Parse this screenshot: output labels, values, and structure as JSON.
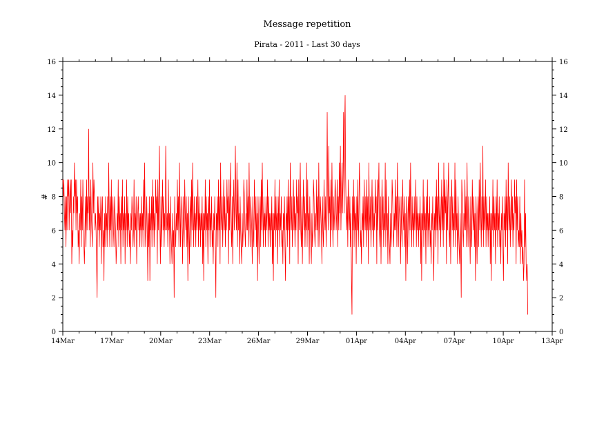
{
  "chart_data": {
    "type": "line",
    "title": "Message repetition",
    "subtitle": "Pirata - 2011 - Last 30 days",
    "xlabel": "",
    "ylabel": "#",
    "ylim": [
      0,
      16
    ],
    "xlim_days": [
      0,
      30
    ],
    "y_ticks": [
      0,
      2,
      4,
      6,
      8,
      10,
      12,
      14,
      16
    ],
    "x_ticks": [
      {
        "day": 0,
        "label": "14Mar"
      },
      {
        "day": 3,
        "label": "17Mar"
      },
      {
        "day": 6,
        "label": "20Mar"
      },
      {
        "day": 9,
        "label": "23Mar"
      },
      {
        "day": 12,
        "label": "26Mar"
      },
      {
        "day": 15,
        "label": "29Mar"
      },
      {
        "day": 18,
        "label": "01Apr"
      },
      {
        "day": 21,
        "label": "04Apr"
      },
      {
        "day": 24,
        "label": "07Apr"
      },
      {
        "day": 27,
        "label": "10Apr"
      },
      {
        "day": 30,
        "label": "13Apr"
      }
    ],
    "grid": false,
    "series": [
      {
        "color": "#ff0000",
        "x_start": "14Mar",
        "x_end": "11Apr",
        "values": [
          9,
          8,
          9,
          7,
          6,
          8,
          5,
          8,
          6,
          9,
          8,
          9,
          6,
          8,
          9,
          7,
          9,
          4,
          6,
          5,
          8,
          7,
          10,
          8,
          9,
          6,
          9,
          7,
          8,
          5,
          6,
          4,
          7,
          6,
          9,
          5,
          8,
          6,
          9,
          7,
          5,
          4,
          6,
          8,
          5,
          9,
          6,
          8,
          7,
          12,
          6,
          8,
          5,
          9,
          7,
          6,
          5,
          10,
          7,
          9,
          8,
          6,
          7,
          6,
          4,
          2,
          8,
          6,
          8,
          5,
          7,
          6,
          8,
          4,
          7,
          8,
          5,
          6,
          3,
          7,
          5,
          8,
          6,
          7,
          5,
          8,
          6,
          10,
          7,
          5,
          8,
          6,
          9,
          5,
          7,
          8,
          6,
          5,
          8,
          7,
          6,
          4,
          5,
          7,
          6,
          9,
          5,
          8,
          6,
          7,
          4,
          8,
          6,
          9,
          5,
          7,
          6,
          8,
          4,
          7,
          6,
          9,
          5,
          8,
          6,
          7,
          5,
          6,
          4,
          7,
          6,
          8,
          7,
          5,
          6,
          9,
          5,
          7,
          6,
          8,
          4,
          6,
          7,
          8,
          6,
          7,
          5,
          7,
          6,
          8,
          5,
          7,
          6,
          9,
          5,
          10,
          7,
          5,
          6,
          8,
          6,
          3,
          7,
          5,
          8,
          3,
          7,
          6,
          8,
          5,
          9,
          6,
          8,
          5,
          7,
          6,
          9,
          7,
          8,
          4,
          9,
          6,
          8,
          11,
          6,
          4,
          8,
          5,
          7,
          9,
          6,
          8,
          5,
          7,
          6,
          11,
          8,
          6,
          7,
          5,
          9,
          6,
          7,
          4,
          8,
          6,
          5,
          4,
          7,
          5,
          6,
          2,
          8,
          6,
          5,
          7,
          6,
          9,
          6,
          8,
          5,
          10,
          7,
          5,
          8,
          7,
          6,
          4,
          8,
          6,
          5,
          9,
          7,
          6,
          8,
          5,
          7,
          3,
          8,
          6,
          4,
          7,
          8,
          5,
          9,
          6,
          10,
          7,
          5,
          8,
          6,
          7,
          5,
          8,
          6,
          7,
          9,
          5,
          8,
          6,
          7,
          5,
          7,
          6,
          8,
          4,
          7,
          3,
          7,
          6,
          9,
          5,
          8,
          6,
          7,
          4,
          8,
          6,
          9,
          5,
          7,
          6,
          8,
          5,
          6,
          4,
          7,
          6,
          8,
          5,
          2,
          7,
          6,
          8,
          5,
          9,
          6,
          8,
          4,
          10,
          7,
          6,
          8,
          5,
          7,
          9,
          6,
          8,
          5,
          7,
          6,
          9,
          7,
          8,
          4,
          9,
          6,
          8,
          10,
          6,
          5,
          8,
          4,
          7,
          9,
          6,
          8,
          11,
          7,
          6,
          10,
          5,
          9,
          6,
          7,
          4,
          8,
          6,
          5,
          4,
          7,
          5,
          6,
          9,
          8,
          6,
          5,
          7,
          6,
          9,
          6,
          8,
          5,
          10,
          7,
          5,
          8,
          7,
          6,
          4,
          8,
          6,
          5,
          9,
          7,
          6,
          8,
          5,
          7,
          3,
          8,
          6,
          4,
          7,
          8,
          5,
          9,
          6,
          10,
          7,
          5,
          8,
          6,
          7,
          5,
          8,
          6,
          7,
          9,
          5,
          8,
          6,
          7,
          5,
          7,
          6,
          8,
          4,
          7,
          3,
          7,
          6,
          9,
          5,
          8,
          6,
          7,
          4,
          8,
          6,
          9,
          5,
          7,
          6,
          8,
          5,
          6,
          4,
          7,
          6,
          8,
          5,
          3,
          7,
          6,
          8,
          5,
          9,
          6,
          8,
          4,
          10,
          7,
          6,
          8,
          5,
          7,
          9,
          6,
          8,
          5,
          7,
          6,
          9,
          7,
          8,
          4,
          9,
          6,
          8,
          10,
          6,
          5,
          8,
          4,
          7,
          9,
          6,
          8,
          5,
          7,
          6,
          10,
          5,
          9,
          6,
          7,
          4,
          8,
          6,
          5,
          4,
          7,
          5,
          6,
          9,
          8,
          6,
          5,
          7,
          6,
          9,
          6,
          8,
          5,
          10,
          7,
          5,
          8,
          7,
          6,
          4,
          8,
          6,
          5,
          9,
          7,
          6,
          8,
          5,
          7,
          13,
          8,
          6,
          11,
          7,
          8,
          5,
          9,
          6,
          10,
          7,
          5,
          8,
          6,
          7,
          9,
          8,
          6,
          7,
          9,
          5,
          8,
          6,
          10,
          7,
          11,
          6,
          8,
          10,
          7,
          9,
          13,
          7,
          12,
          14,
          9,
          7,
          6,
          8,
          5,
          9,
          7,
          6,
          8,
          5,
          7,
          3,
          1,
          8,
          6,
          9,
          5,
          8,
          6,
          7,
          4,
          8,
          6,
          9,
          5,
          7,
          10,
          8,
          5,
          6,
          4,
          7,
          6,
          8,
          5,
          9,
          7,
          6,
          8,
          5,
          9,
          6,
          8,
          4,
          10,
          7,
          6,
          8,
          5,
          7,
          9,
          6,
          8,
          5,
          7,
          6,
          9,
          7,
          8,
          4,
          9,
          6,
          8,
          10,
          6,
          5,
          8,
          4,
          7,
          9,
          6,
          8,
          5,
          7,
          6,
          10,
          5,
          9,
          6,
          7,
          4,
          8,
          6,
          5,
          4,
          7,
          5,
          6,
          9,
          8,
          6,
          5,
          7,
          6,
          9,
          6,
          8,
          5,
          10,
          7,
          5,
          8,
          7,
          6,
          4,
          8,
          6,
          5,
          9,
          7,
          6,
          8,
          5,
          7,
          3,
          8,
          6,
          4,
          7,
          8,
          5,
          9,
          6,
          10,
          7,
          5,
          8,
          6,
          7,
          5,
          8,
          6,
          7,
          9,
          5,
          8,
          6,
          7,
          5,
          7,
          6,
          8,
          4,
          7,
          3,
          7,
          6,
          9,
          5,
          8,
          6,
          7,
          4,
          8,
          6,
          9,
          5,
          7,
          6,
          8,
          5,
          6,
          4,
          7,
          6,
          8,
          5,
          3,
          7,
          6,
          8,
          5,
          9,
          6,
          8,
          4,
          10,
          7,
          6,
          8,
          5,
          7,
          9,
          6,
          8,
          5,
          10,
          6,
          9,
          7,
          8,
          4,
          9,
          6,
          8,
          10,
          6,
          5,
          8,
          4,
          7,
          9,
          6,
          8,
          5,
          7,
          6,
          10,
          5,
          9,
          6,
          7,
          4,
          8,
          6,
          5,
          4,
          7,
          5,
          2,
          9,
          8,
          6,
          5,
          7,
          6,
          9,
          6,
          8,
          5,
          10,
          7,
          5,
          8,
          7,
          6,
          4,
          8,
          6,
          5,
          9,
          7,
          6,
          8,
          5,
          7,
          3,
          8,
          6,
          4,
          7,
          8,
          5,
          9,
          6,
          10,
          7,
          5,
          8,
          6,
          11,
          5,
          8,
          6,
          7,
          9,
          5,
          8,
          6,
          7,
          5,
          7,
          6,
          8,
          4,
          7,
          3,
          7,
          6,
          9,
          5,
          8,
          6,
          7,
          4,
          8,
          6,
          9,
          5,
          7,
          6,
          8,
          5,
          6,
          4,
          7,
          6,
          8,
          5,
          3,
          7,
          6,
          8,
          5,
          9,
          6,
          8,
          4,
          10,
          7,
          6,
          8,
          5,
          7,
          9,
          6,
          8,
          5,
          7,
          6,
          9,
          7,
          8,
          4,
          9,
          6,
          8,
          5,
          6,
          5,
          8,
          4,
          7,
          5,
          6,
          4,
          5,
          3,
          4,
          9,
          5,
          7,
          4,
          3,
          4,
          1
        ]
      }
    ]
  }
}
